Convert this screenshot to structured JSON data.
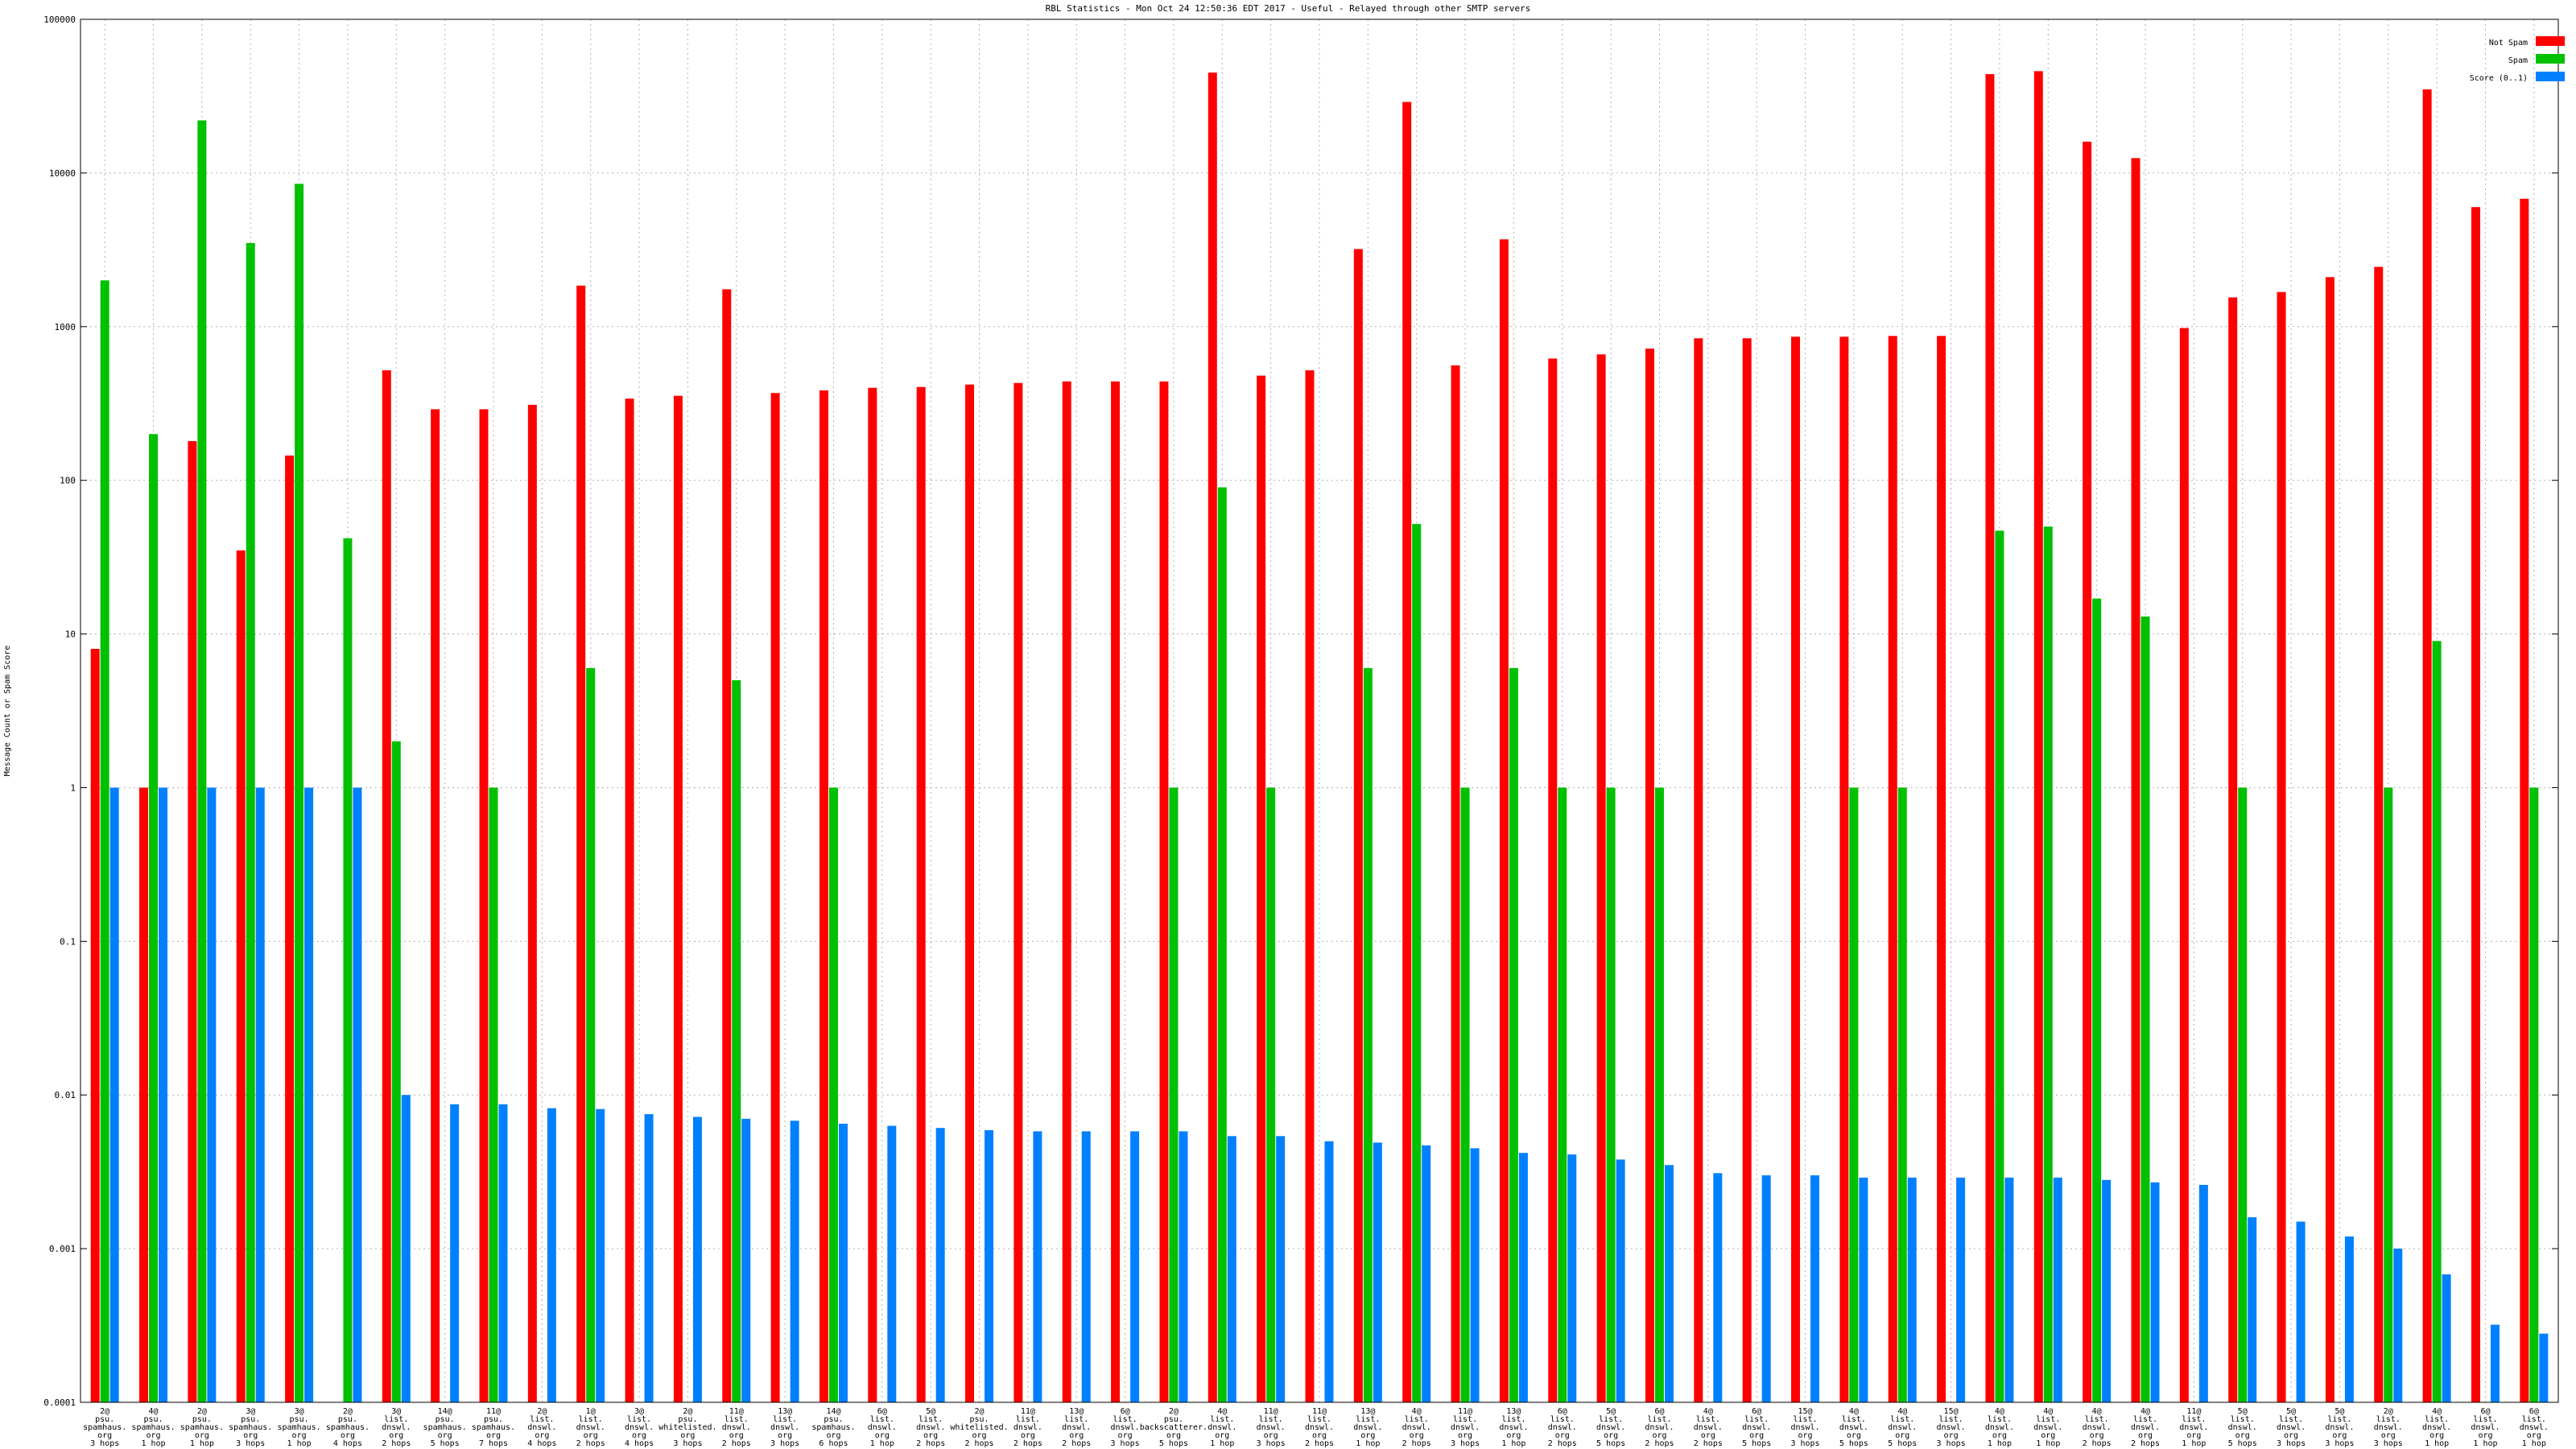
{
  "chart_data": {
    "type": "bar",
    "title": "RBL Statistics - Mon Oct 24 12:50:36 EDT 2017 - Useful - Relayed through other SMTP servers",
    "xlabel": "",
    "ylabel": "Message Count or Spam Score",
    "yscale": "log",
    "ylim": [
      0.0001,
      100000
    ],
    "yticks": [
      {
        "value": 100000,
        "label": "100000"
      },
      {
        "value": 10000,
        "label": "10000"
      },
      {
        "value": 1000,
        "label": "1000"
      },
      {
        "value": 100,
        "label": "100"
      },
      {
        "value": 10,
        "label": "10"
      },
      {
        "value": 1,
        "label": "1"
      },
      {
        "value": 0.1,
        "label": "0.1"
      },
      {
        "value": 0.01,
        "label": "0.01"
      },
      {
        "value": 0.001,
        "label": "0.001"
      },
      {
        "value": 0.0001,
        "label": "0.0001"
      }
    ],
    "grid": true,
    "legend_position": "top-right",
    "categories": [
      [
        "2@",
        "psu.",
        "spamhaus.",
        "org",
        "3 hops"
      ],
      [
        "4@",
        "psu.",
        "spamhaus.",
        "org",
        "1 hop"
      ],
      [
        "2@",
        "psu.",
        "spamhaus.",
        "org",
        "1 hop"
      ],
      [
        "3@",
        "psu.",
        "spamhaus.",
        "org",
        "3 hops"
      ],
      [
        "3@",
        "psu.",
        "spamhaus.",
        "org",
        "1 hop"
      ],
      [
        "2@",
        "psu.",
        "spamhaus.",
        "org",
        "4 hops"
      ],
      [
        "3@",
        "list.",
        "dnswl.",
        "org",
        "2 hops"
      ],
      [
        "14@",
        "psu.",
        "spamhaus.",
        "org",
        "5 hops"
      ],
      [
        "11@",
        "psu.",
        "spamhaus.",
        "org",
        "7 hops"
      ],
      [
        "2@",
        "list.",
        "dnswl.",
        "org",
        "4 hops"
      ],
      [
        "1@",
        "list.",
        "dnswl.",
        "org",
        "2 hops"
      ],
      [
        "3@",
        "list.",
        "dnswl.",
        "org",
        "4 hops"
      ],
      [
        "2@",
        "psu.",
        "whitelisted.",
        "org",
        "3 hops"
      ],
      [
        "11@",
        "list.",
        "dnswl.",
        "org",
        "2 hops"
      ],
      [
        "13@",
        "list.",
        "dnswl.",
        "org",
        "3 hops"
      ],
      [
        "14@",
        "psu.",
        "spamhaus.",
        "org",
        "6 hops"
      ],
      [
        "6@",
        "list.",
        "dnswl.",
        "org",
        "1 hop"
      ],
      [
        "5@",
        "list.",
        "dnswl.",
        "org",
        "2 hops"
      ],
      [
        "2@",
        "psu.",
        "whitelisted.",
        "org",
        "2 hops"
      ],
      [
        "11@",
        "list.",
        "dnswl.",
        "org",
        "2 hops"
      ],
      [
        "13@",
        "list.",
        "dnswl.",
        "org",
        "2 hops"
      ],
      [
        "6@",
        "list.",
        "dnswl.",
        "org",
        "3 hops"
      ],
      [
        "2@",
        "psu.",
        "backscatterer.",
        "org",
        "5 hops"
      ],
      [
        "4@",
        "list.",
        "dnswl.",
        "org",
        "1 hop"
      ],
      [
        "11@",
        "list.",
        "dnswl.",
        "org",
        "3 hops"
      ],
      [
        "11@",
        "list.",
        "dnswl.",
        "org",
        "2 hops"
      ],
      [
        "13@",
        "list.",
        "dnswl.",
        "org",
        "1 hop"
      ],
      [
        "4@",
        "list.",
        "dnswl.",
        "org",
        "2 hops"
      ],
      [
        "11@",
        "list.",
        "dnswl.",
        "org",
        "3 hops"
      ],
      [
        "13@",
        "list.",
        "dnswl.",
        "org",
        "1 hop"
      ],
      [
        "6@",
        "list.",
        "dnswl.",
        "org",
        "2 hops"
      ],
      [
        "5@",
        "list.",
        "dnswl.",
        "org",
        "5 hops"
      ],
      [
        "6@",
        "list.",
        "dnswl.",
        "org",
        "2 hops"
      ],
      [
        "4@",
        "list.",
        "dnswl.",
        "org",
        "2 hops"
      ],
      [
        "6@",
        "list.",
        "dnswl.",
        "org",
        "5 hops"
      ],
      [
        "15@",
        "list.",
        "dnswl.",
        "org",
        "3 hops"
      ],
      [
        "4@",
        "list.",
        "dnswl.",
        "org",
        "5 hops"
      ],
      [
        "4@",
        "list.",
        "dnswl.",
        "org",
        "5 hops"
      ],
      [
        "15@",
        "list.",
        "dnswl.",
        "org",
        "3 hops"
      ],
      [
        "4@",
        "list.",
        "dnswl.",
        "org",
        "1 hop"
      ],
      [
        "4@",
        "list.",
        "dnswl.",
        "org",
        "1 hop"
      ],
      [
        "4@",
        "list.",
        "dnswl.",
        "org",
        "2 hops"
      ],
      [
        "4@",
        "list.",
        "dnswl.",
        "org",
        "2 hops"
      ],
      [
        "11@",
        "list.",
        "dnswl.",
        "org",
        "1 hop"
      ],
      [
        "5@",
        "list.",
        "dnswl.",
        "org",
        "5 hops"
      ],
      [
        "5@",
        "list.",
        "dnswl.",
        "org",
        "3 hops"
      ],
      [
        "5@",
        "list.",
        "dnswl.",
        "org",
        "3 hops"
      ],
      [
        "2@",
        "list.",
        "dnswl.",
        "org",
        "3 hops"
      ],
      [
        "4@",
        "list.",
        "dnswl.",
        "org",
        "1 hop"
      ],
      [
        "6@",
        "list.",
        "dnswl.",
        "org",
        "1 hop"
      ],
      [
        "6@",
        "list.",
        "dnswl.",
        "org",
        "1 hop"
      ]
    ],
    "series": [
      {
        "name": "Not Spam",
        "color": "#ff0000",
        "values": [
          8,
          1,
          180,
          35,
          145,
          null,
          520,
          290,
          290,
          310,
          1850,
          340,
          355,
          1750,
          370,
          385,
          400,
          405,
          420,
          430,
          440,
          440,
          440,
          45000,
          480,
          520,
          3200,
          29000,
          560,
          3700,
          620,
          660,
          720,
          840,
          840,
          860,
          860,
          870,
          870,
          44000,
          46000,
          16000,
          12500,
          980,
          1550,
          1680,
          2100,
          2450,
          35000,
          6000,
          6800
        ]
      },
      {
        "name": "Spam",
        "color": "#00c000",
        "values": [
          2000,
          200,
          22000,
          3500,
          8500,
          42,
          2,
          null,
          1,
          null,
          6,
          null,
          null,
          5,
          null,
          1,
          null,
          null,
          null,
          null,
          null,
          null,
          1,
          90,
          1,
          null,
          6,
          52,
          1,
          6,
          1,
          1,
          1,
          null,
          null,
          null,
          1,
          1,
          null,
          47,
          50,
          17,
          13,
          null,
          1,
          null,
          null,
          1,
          9,
          null,
          1
        ]
      },
      {
        "name": "Score (0..1)",
        "color": "#0080ff",
        "values": [
          1,
          1,
          1,
          1,
          1,
          1,
          0.01,
          0.0087,
          0.0087,
          0.0082,
          0.0081,
          0.0075,
          0.0072,
          0.007,
          0.0068,
          0.0065,
          0.0063,
          0.0061,
          0.0059,
          0.0058,
          0.0058,
          0.0058,
          0.0058,
          0.0054,
          0.0054,
          0.005,
          0.0049,
          0.0047,
          0.0045,
          0.0042,
          0.0041,
          0.0038,
          0.0035,
          0.0031,
          0.003,
          0.003,
          0.0029,
          0.0029,
          0.0029,
          0.0029,
          0.0029,
          0.0028,
          0.0027,
          0.0026,
          0.0016,
          0.0015,
          0.0012,
          0.001,
          0.00068,
          0.00032,
          0.00028
        ]
      }
    ]
  }
}
